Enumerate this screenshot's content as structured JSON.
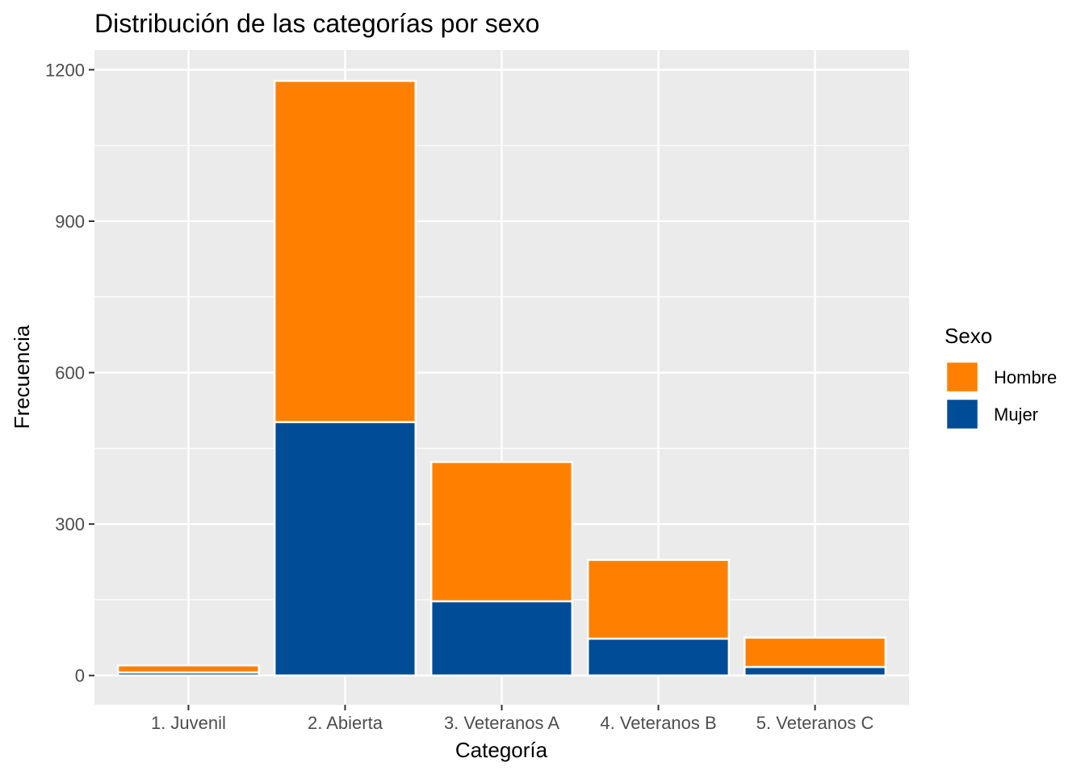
{
  "chart_data": {
    "type": "bar",
    "stacked": true,
    "title": "Distribución de las categorías por sexo",
    "xlabel": "Categoría",
    "ylabel": "Frecuencia",
    "categories": [
      "1. Juvenil",
      "2. Abierta",
      "3. Veteranos A",
      "4. Veteranos B",
      "5. Veteranos C"
    ],
    "series": [
      {
        "name": "Mujer",
        "color": "#004C97",
        "values": [
          6,
          502,
          147,
          73,
          17
        ]
      },
      {
        "name": "Hombre",
        "color": "#FF8000",
        "values": [
          14,
          676,
          276,
          156,
          58
        ]
      }
    ],
    "ylim": [
      -58,
      1239
    ],
    "yticks": [
      0,
      300,
      600,
      900,
      1200
    ],
    "ytick_labels": [
      "0",
      "300",
      "600",
      "900",
      "1200"
    ],
    "legend": {
      "title": "Sexo",
      "position": "right",
      "items": [
        "Hombre",
        "Mujer"
      ]
    },
    "grid": true,
    "panel_background": "#EBEBEB"
  }
}
